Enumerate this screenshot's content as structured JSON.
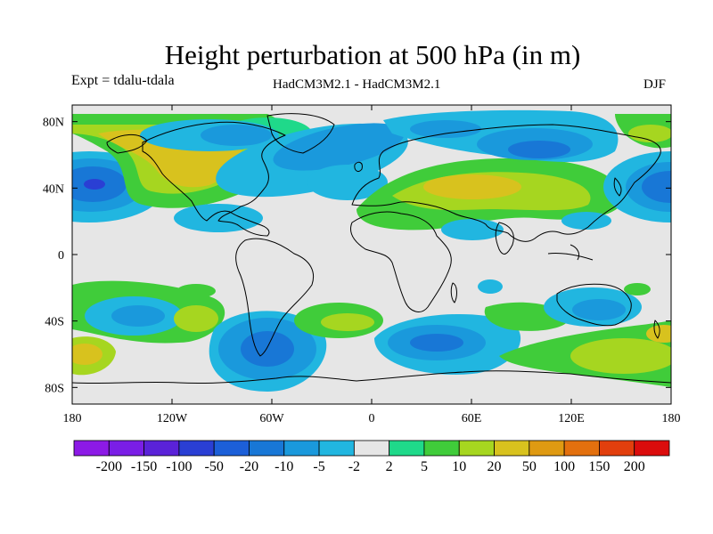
{
  "header": {
    "title": "Height perturbation at 500 hPa (in m)",
    "experiment": "Expt = tdalu-tdala",
    "model_comparison": "HadCM3M2.1 - HadCM3M2.1",
    "season": "DJF"
  },
  "axes": {
    "x_ticks": [
      "180",
      "120W",
      "60W",
      "0",
      "60E",
      "120E",
      "180"
    ],
    "y_ticks": [
      "80N",
      "40N",
      "0",
      "40S",
      "80S"
    ]
  },
  "colorbar": {
    "labels": [
      "-200",
      "-150",
      "-100",
      "-50",
      "-20",
      "-10",
      "-5",
      "-2",
      "2",
      "5",
      "10",
      "20",
      "50",
      "100",
      "150",
      "200"
    ],
    "colors": [
      "#8c1ae6",
      "#7a1ee6",
      "#5a22d8",
      "#2a3fd4",
      "#1c5fd8",
      "#1877d6",
      "#1a99dc",
      "#21b6e0",
      "#e6e6e6",
      "#1fd98a",
      "#40cc3a",
      "#a6d620",
      "#d8c21e",
      "#df9a12",
      "#e3700e",
      "#e23f0d",
      "#db0c0c"
    ]
  },
  "chart_data": {
    "type": "heatmap",
    "title": "Height perturbation at 500 hPa (in m)",
    "variable": "500 hPa geopotential height perturbation",
    "units": "m",
    "experiment": "Expt = tdalu-tdala",
    "model": "HadCM3M2.1 - HadCM3M2.1",
    "season": "DJF",
    "lon_range": [
      -180,
      180
    ],
    "lat_range": [
      -90,
      90
    ],
    "contour_levels": [
      -200,
      -150,
      -100,
      -50,
      -20,
      -10,
      -5,
      -2,
      2,
      5,
      10,
      20,
      50,
      100,
      150,
      200
    ],
    "features": [
      {
        "region": "North Pacific (approx 170W, 40N)",
        "sign": "negative",
        "approx_min": -50
      },
      {
        "region": "Western North America / Canada",
        "sign": "positive",
        "approx_max": 50
      },
      {
        "region": "Eastern North America / North Atlantic (approx 60W, 65N)",
        "sign": "negative",
        "approx_min": -20
      },
      {
        "region": "Europe / Mediterranean / Middle East (approx 30-60E, 40N)",
        "sign": "positive",
        "approx_max": 50
      },
      {
        "region": "Northern Eurasia (approx 90E, 65N)",
        "sign": "negative",
        "approx_min": -20
      },
      {
        "region": "Northwest Pacific (approx 180, 40N)",
        "sign": "negative",
        "approx_min": -50
      },
      {
        "region": "South Atlantic (approx 60W, 50S)",
        "sign": "negative",
        "approx_min": -20
      },
      {
        "region": "Southern Indian Ocean (approx 40E, 55S)",
        "sign": "negative",
        "approx_min": -20
      },
      {
        "region": "Southwest Pacific / south of Australia (approx 150E, 55S)",
        "sign": "positive",
        "approx_max": 20
      }
    ]
  }
}
